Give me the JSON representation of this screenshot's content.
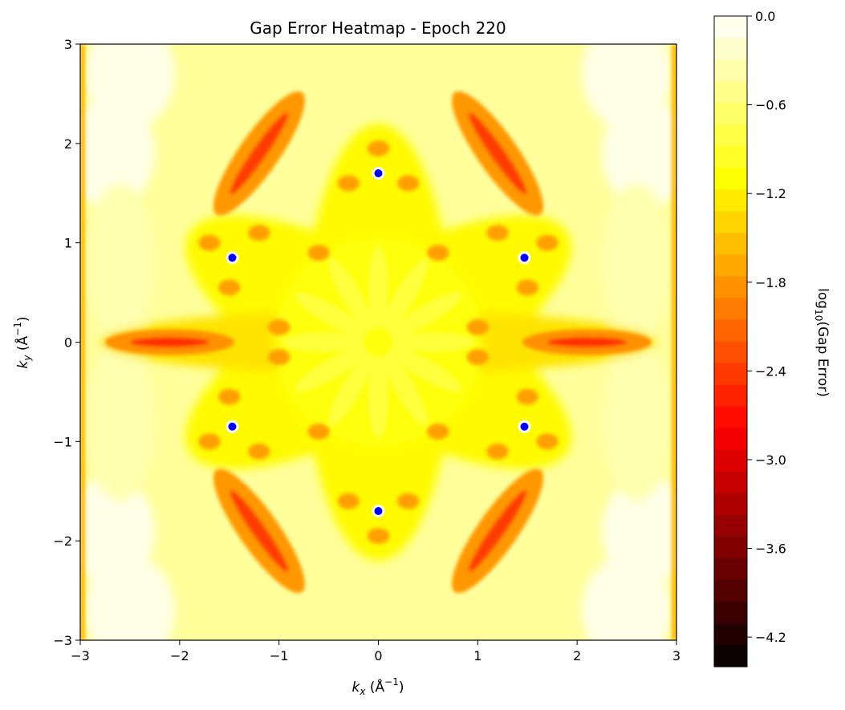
{
  "chart_data": {
    "type": "heatmap",
    "title": "Gap Error Heatmap - Epoch 220",
    "xlabel": "k_x (Å⁻¹)",
    "ylabel": "k_y (Å⁻¹)",
    "xlabel_parts": {
      "var": "k",
      "sub": "x",
      "unit_open": " (Å",
      "sup": "−1",
      "unit_close": ")"
    },
    "ylabel_parts": {
      "var": "k",
      "sub": "y",
      "unit_open": " (Å",
      "sup": "−1",
      "unit_close": ")"
    },
    "xlim": [
      -3,
      3
    ],
    "ylim": [
      -3,
      3
    ],
    "xticks": [
      -3,
      -2,
      -1,
      0,
      1,
      2,
      3
    ],
    "yticks": [
      -3,
      -2,
      -1,
      0,
      1,
      2,
      3
    ],
    "xtick_labels": [
      "−3",
      "−2",
      "−1",
      "0",
      "1",
      "2",
      "3"
    ],
    "ytick_labels": [
      "−3",
      "−2",
      "−1",
      "0",
      "1",
      "2",
      "3"
    ],
    "colormap": "hot",
    "colorbar": {
      "label": "log₁₀(Gap Error)",
      "label_parts": {
        "pre": "log",
        "sub": "10",
        "post": "(Gap Error)"
      },
      "range": [
        -4.4,
        0.0
      ],
      "levels": 30,
      "ticks": [
        0.0,
        -0.6,
        -1.2,
        -1.8,
        -2.4,
        -3.0,
        -3.6,
        -4.2
      ],
      "tick_labels": [
        "0.0",
        "−0.6",
        "−1.2",
        "−1.8",
        "−2.4",
        "−3.0",
        "−3.6",
        "−4.2"
      ]
    },
    "markers": {
      "color": "#0000ee",
      "points": [
        {
          "x": 0.0,
          "y": 1.7
        },
        {
          "x": 0.0,
          "y": -1.7
        },
        {
          "x": -1.47,
          "y": 0.85
        },
        {
          "x": 1.47,
          "y": 0.85
        },
        {
          "x": -1.47,
          "y": -0.85
        },
        {
          "x": 1.47,
          "y": -0.85
        }
      ]
    }
  }
}
